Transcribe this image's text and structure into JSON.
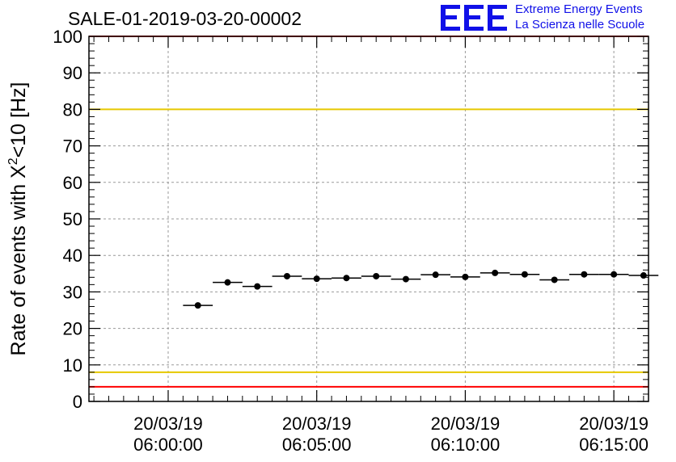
{
  "chart_data": {
    "type": "scatter",
    "title": "SALE-01-2019-03-20-00002",
    "ylabel_main": "Rate of events with X",
    "ylabel_sup": "2",
    "ylabel_tail": "<10 [Hz]",
    "xlabel": "",
    "ylim": [
      0,
      100
    ],
    "yticks": [
      "0",
      "10",
      "20",
      "30",
      "40",
      "50",
      "60",
      "70",
      "80",
      "90",
      "100"
    ],
    "xticks": [
      {
        "date": "20/03/19",
        "time": "06:00:00",
        "t": 0
      },
      {
        "date": "20/03/19",
        "time": "06:05:00",
        "t": 300
      },
      {
        "date": "20/03/19",
        "time": "06:10:00",
        "t": 600
      },
      {
        "date": "20/03/19",
        "time": "06:15:00",
        "t": 900
      }
    ],
    "xlim_seconds_from_0600": [
      -160,
      970
    ],
    "bin_width_seconds": 60,
    "points": [
      {
        "t": 60,
        "y": 26.3
      },
      {
        "t": 120,
        "y": 32.6
      },
      {
        "t": 180,
        "y": 31.5
      },
      {
        "t": 240,
        "y": 34.3
      },
      {
        "t": 300,
        "y": 33.6
      },
      {
        "t": 360,
        "y": 33.8
      },
      {
        "t": 420,
        "y": 34.3
      },
      {
        "t": 480,
        "y": 33.5
      },
      {
        "t": 540,
        "y": 34.7
      },
      {
        "t": 600,
        "y": 34.1
      },
      {
        "t": 660,
        "y": 35.2
      },
      {
        "t": 720,
        "y": 34.8
      },
      {
        "t": 780,
        "y": 33.3
      },
      {
        "t": 840,
        "y": 34.8
      },
      {
        "t": 900,
        "y": 34.8
      },
      {
        "t": 960,
        "y": 34.5
      }
    ],
    "reference_lines": [
      {
        "y": 100,
        "color": "#ff0000"
      },
      {
        "y": 80,
        "color": "#e6c800"
      },
      {
        "y": 8,
        "color": "#e6c800"
      },
      {
        "y": 4,
        "color": "#ff0000"
      }
    ],
    "grid": true
  },
  "branding": {
    "logo": "EEE",
    "line1": "Extreme Energy Events",
    "line2": "La Scienza nelle Scuole",
    "color": "#1010e8"
  }
}
